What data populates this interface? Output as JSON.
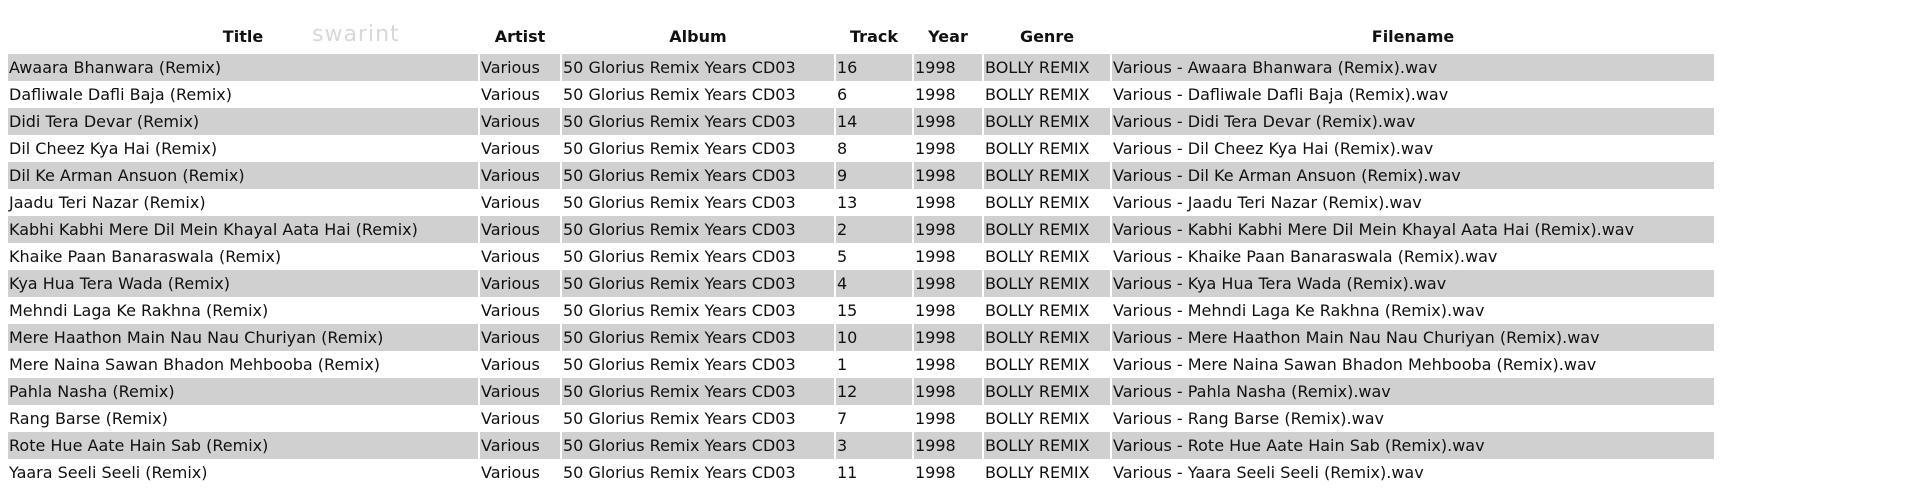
{
  "watermark": "swarint",
  "table": {
    "headers": [
      "Title",
      "Artist",
      "Album",
      "Track",
      "Year",
      "Genre",
      "Filename"
    ],
    "rows": [
      [
        "Awaara Bhanwara (Remix)",
        "Various",
        "50 Glorius Remix Years CD03",
        "16",
        "1998",
        "BOLLY REMIX",
        "Various - Awaara Bhanwara (Remix).wav"
      ],
      [
        "Dafliwale Dafli Baja (Remix)",
        "Various",
        "50 Glorius Remix Years CD03",
        "6",
        "1998",
        "BOLLY REMIX",
        "Various - Dafliwale Dafli Baja (Remix).wav"
      ],
      [
        "Didi Tera Devar (Remix)",
        "Various",
        "50 Glorius Remix Years CD03",
        "14",
        "1998",
        "BOLLY REMIX",
        "Various - Didi Tera Devar (Remix).wav"
      ],
      [
        "Dil Cheez Kya Hai (Remix)",
        "Various",
        "50 Glorius Remix Years CD03",
        "8",
        "1998",
        "BOLLY REMIX",
        "Various - Dil Cheez Kya Hai (Remix).wav"
      ],
      [
        "Dil Ke Arman Ansuon (Remix)",
        "Various",
        "50 Glorius Remix Years CD03",
        "9",
        "1998",
        "BOLLY REMIX",
        "Various - Dil Ke Arman Ansuon (Remix).wav"
      ],
      [
        "Jaadu Teri Nazar (Remix)",
        "Various",
        "50 Glorius Remix Years CD03",
        "13",
        "1998",
        "BOLLY REMIX",
        "Various - Jaadu Teri Nazar (Remix).wav"
      ],
      [
        "Kabhi Kabhi Mere Dil Mein Khayal Aata Hai (Remix)",
        "Various",
        "50 Glorius Remix Years CD03",
        "2",
        "1998",
        "BOLLY REMIX",
        "Various - Kabhi Kabhi Mere Dil Mein Khayal Aata Hai (Remix).wav"
      ],
      [
        "Khaike Paan Banaraswala (Remix)",
        "Various",
        "50 Glorius Remix Years CD03",
        "5",
        "1998",
        "BOLLY REMIX",
        "Various - Khaike Paan Banaraswala (Remix).wav"
      ],
      [
        "Kya Hua Tera Wada (Remix)",
        "Various",
        "50 Glorius Remix Years CD03",
        "4",
        "1998",
        "BOLLY REMIX",
        "Various - Kya Hua Tera Wada (Remix).wav"
      ],
      [
        "Mehndi Laga Ke Rakhna (Remix)",
        "Various",
        "50 Glorius Remix Years CD03",
        "15",
        "1998",
        "BOLLY REMIX",
        "Various - Mehndi Laga Ke Rakhna (Remix).wav"
      ],
      [
        "Mere Haathon Main Nau Nau Churiyan (Remix)",
        "Various",
        "50 Glorius Remix Years CD03",
        "10",
        "1998",
        "BOLLY REMIX",
        "Various - Mere Haathon Main Nau Nau Churiyan (Remix).wav"
      ],
      [
        "Mere Naina Sawan Bhadon Mehbooba (Remix)",
        "Various",
        "50 Glorius Remix Years CD03",
        "1",
        "1998",
        "BOLLY REMIX",
        "Various - Mere Naina Sawan Bhadon Mehbooba (Remix).wav"
      ],
      [
        "Pahla Nasha (Remix)",
        "Various",
        "50 Glorius Remix Years CD03",
        "12",
        "1998",
        "BOLLY REMIX",
        "Various - Pahla Nasha (Remix).wav"
      ],
      [
        "Rang Barse (Remix)",
        "Various",
        "50 Glorius Remix Years CD03",
        "7",
        "1998",
        "BOLLY REMIX",
        "Various - Rang Barse (Remix).wav"
      ],
      [
        "Rote Hue Aate Hain Sab (Remix)",
        "Various",
        "50 Glorius Remix Years CD03",
        "3",
        "1998",
        "BOLLY REMIX",
        "Various - Rote Hue Aate Hain Sab (Remix).wav"
      ],
      [
        "Yaara Seeli Seeli (Remix)",
        "Various",
        "50 Glorius Remix Years CD03",
        "11",
        "1998",
        "BOLLY REMIX",
        "Various - Yaara Seeli Seeli (Remix).wav"
      ]
    ]
  }
}
